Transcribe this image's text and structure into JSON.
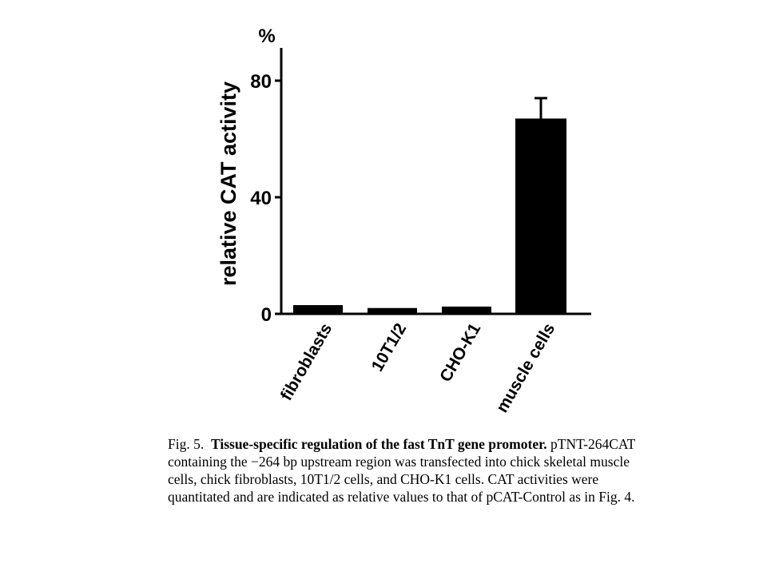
{
  "chart_data": {
    "type": "bar",
    "categories": [
      "fibroblasts",
      "10T1/2",
      "CHO-K1",
      "muscle cells"
    ],
    "values": [
      3,
      2,
      2.5,
      67
    ],
    "error": [
      null,
      null,
      null,
      7
    ],
    "ylabel": "relative CAT activity",
    "yunit": "%",
    "ylim": [
      0,
      90
    ],
    "yticks": [
      0,
      40,
      80
    ],
    "bar_color": "#000000",
    "grid": false
  },
  "caption": {
    "fig_label": "Fig. 5.",
    "title": "Tissue-specific regulation of the fast TnT gene promoter.",
    "body": "pTNT-264CAT containing the −264 bp upstream region was transfected into chick skeletal muscle cells, chick fibroblasts, 10T1/2 cells, and CHO-K1 cells. CAT activities were quantitated and are indicated as relative values to that of pCAT-Control as in Fig. 4."
  }
}
